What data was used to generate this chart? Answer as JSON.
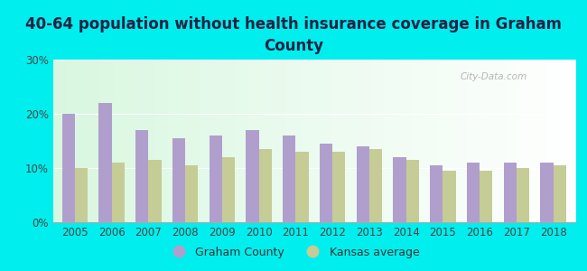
{
  "title": "40-64 population without health insurance coverage in Graham\nCounty",
  "years": [
    2005,
    2006,
    2007,
    2008,
    2009,
    2010,
    2011,
    2012,
    2013,
    2014,
    2015,
    2016,
    2017,
    2018
  ],
  "graham_county": [
    20,
    22,
    17,
    15.5,
    16,
    17,
    16,
    14.5,
    14,
    12,
    10.5,
    11,
    11,
    11
  ],
  "kansas_avg": [
    10,
    11,
    11.5,
    10.5,
    12,
    13.5,
    13,
    13,
    13.5,
    11.5,
    9.5,
    9.5,
    10,
    10.5
  ],
  "graham_color": "#b09fcc",
  "kansas_color": "#c5cc96",
  "bg_color": "#00eeee",
  "ylim": [
    0,
    30
  ],
  "yticks": [
    0,
    10,
    20,
    30
  ],
  "legend_graham": "Graham County",
  "legend_kansas": "Kansas average",
  "bar_width": 0.35,
  "title_fontsize": 12,
  "tick_fontsize": 8.5,
  "legend_fontsize": 9,
  "title_color": "#222244"
}
